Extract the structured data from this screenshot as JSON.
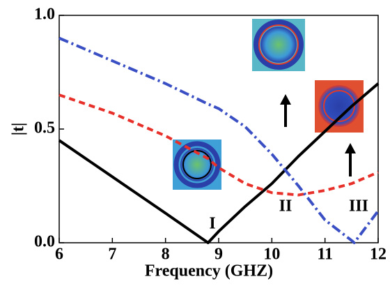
{
  "chart_data": {
    "type": "line",
    "x_label": "Frequency (GHZ)",
    "y_label": "|t|",
    "x": [
      6,
      7,
      8,
      8.8,
      9,
      9.5,
      10,
      10.5,
      11,
      11.5,
      11.55,
      12
    ],
    "series": [
      {
        "color": "#000000",
        "style": "solid",
        "values": [
          0.45,
          0.29,
          0.13,
          0.0,
          0.05,
          0.16,
          0.26,
          0.38,
          0.49,
          0.6,
          0.61,
          0.7
        ]
      },
      {
        "color": "#e8302a",
        "style": "dashed",
        "values": [
          0.65,
          0.57,
          0.47,
          0.37,
          0.33,
          0.26,
          0.22,
          0.21,
          0.23,
          0.26,
          0.265,
          0.31
        ]
      },
      {
        "color": "#3a4fc4",
        "style": "dashdot",
        "values": [
          0.9,
          0.8,
          0.7,
          0.61,
          0.59,
          0.51,
          0.39,
          0.25,
          0.1,
          0.01,
          0.0,
          0.14
        ]
      }
    ],
    "xlim": [
      6,
      12
    ],
    "xticks": [
      6,
      7,
      8,
      9,
      10,
      11,
      12
    ],
    "ylim": [
      0,
      1
    ],
    "yticks": [
      {
        "value": 0,
        "label": "0.0"
      },
      {
        "value": 0.5,
        "label": "0.5"
      },
      {
        "value": 1,
        "label": "1.0"
      }
    ],
    "annotations": [
      "I",
      "II",
      "III"
    ]
  }
}
